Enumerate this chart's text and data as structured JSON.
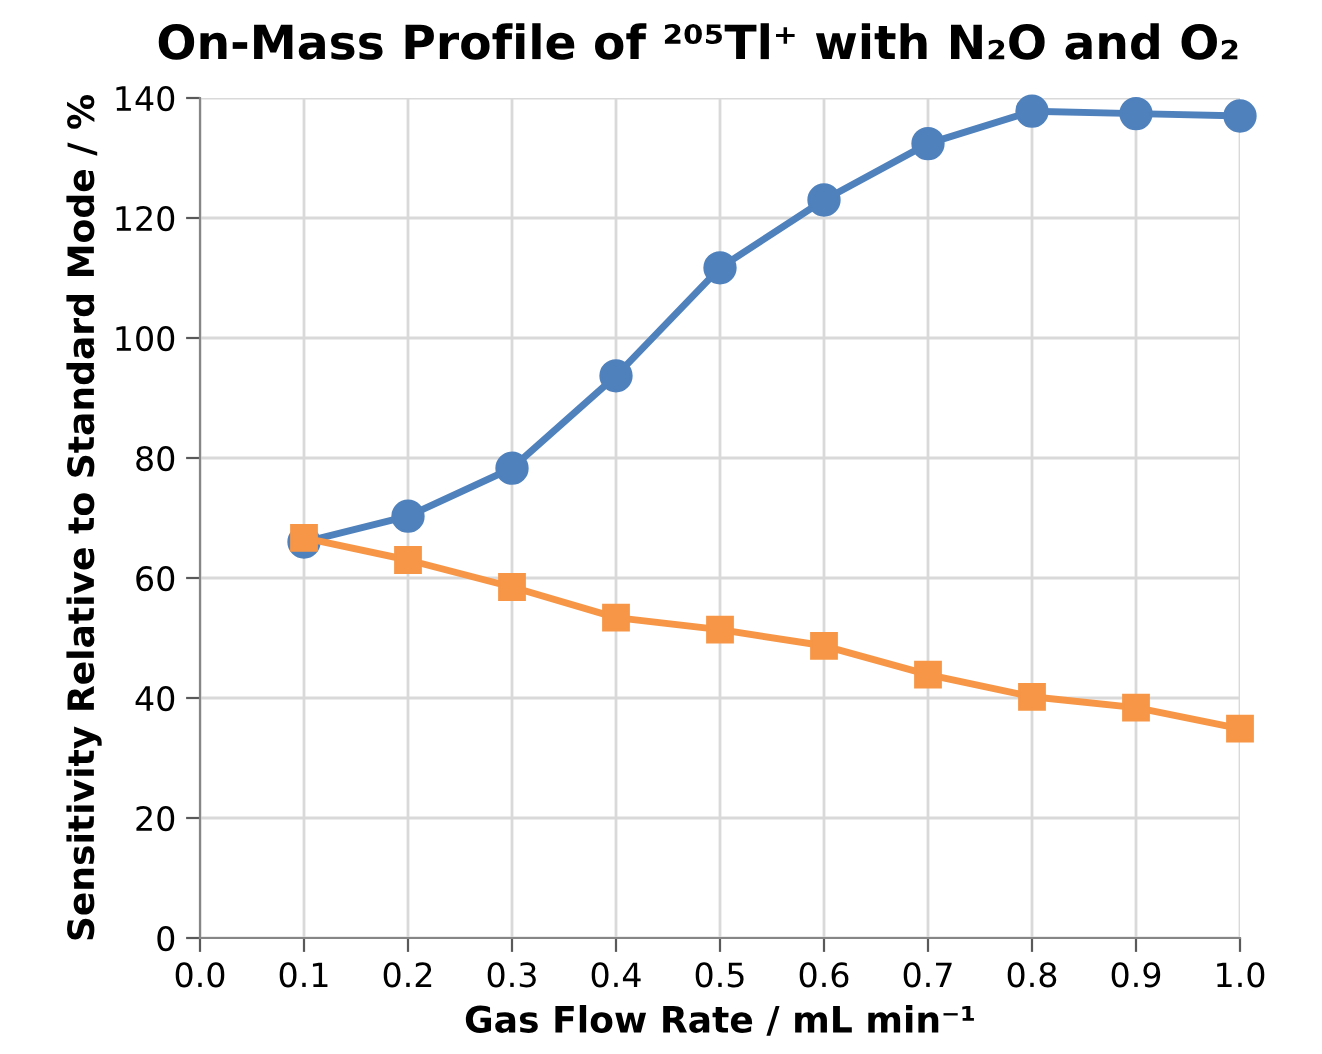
{
  "chart_data": {
    "type": "line",
    "title": "On-Mass Profile of ²⁰⁵Tl⁺ with N₂O and O₂",
    "xlabel": "Gas Flow Rate / mL min⁻¹",
    "ylabel": "Sensitivity Relative to Standard Mode / %",
    "x": [
      0.1,
      0.2,
      0.3,
      0.4,
      0.5,
      0.6,
      0.7,
      0.8,
      0.9,
      1.0
    ],
    "series": [
      {
        "color": "#4f81bd",
        "marker": "circle",
        "values": [
          66,
          70.3,
          78.3,
          93.7,
          111.7,
          123,
          132.4,
          137.8,
          137.4,
          137
        ]
      },
      {
        "color": "#f79646",
        "marker": "square",
        "values": [
          66.7,
          63,
          58.5,
          53.4,
          51.4,
          48.7,
          43.9,
          40.2,
          38.4,
          34.9
        ]
      }
    ],
    "xlim": [
      0.0,
      1.0
    ],
    "xticks": [
      {
        "value": 0.0,
        "label": "0.0"
      },
      0.1,
      0.2,
      0.3,
      0.4,
      0.5,
      0.6,
      0.7,
      0.8,
      0.9,
      {
        "value": 1.0,
        "label": "1.0"
      }
    ],
    "ylim": [
      0,
      140
    ],
    "yticks": [
      0,
      20,
      40,
      60,
      80,
      100,
      120,
      140
    ],
    "grid": true,
    "line_style": "solid",
    "legend": false
  }
}
